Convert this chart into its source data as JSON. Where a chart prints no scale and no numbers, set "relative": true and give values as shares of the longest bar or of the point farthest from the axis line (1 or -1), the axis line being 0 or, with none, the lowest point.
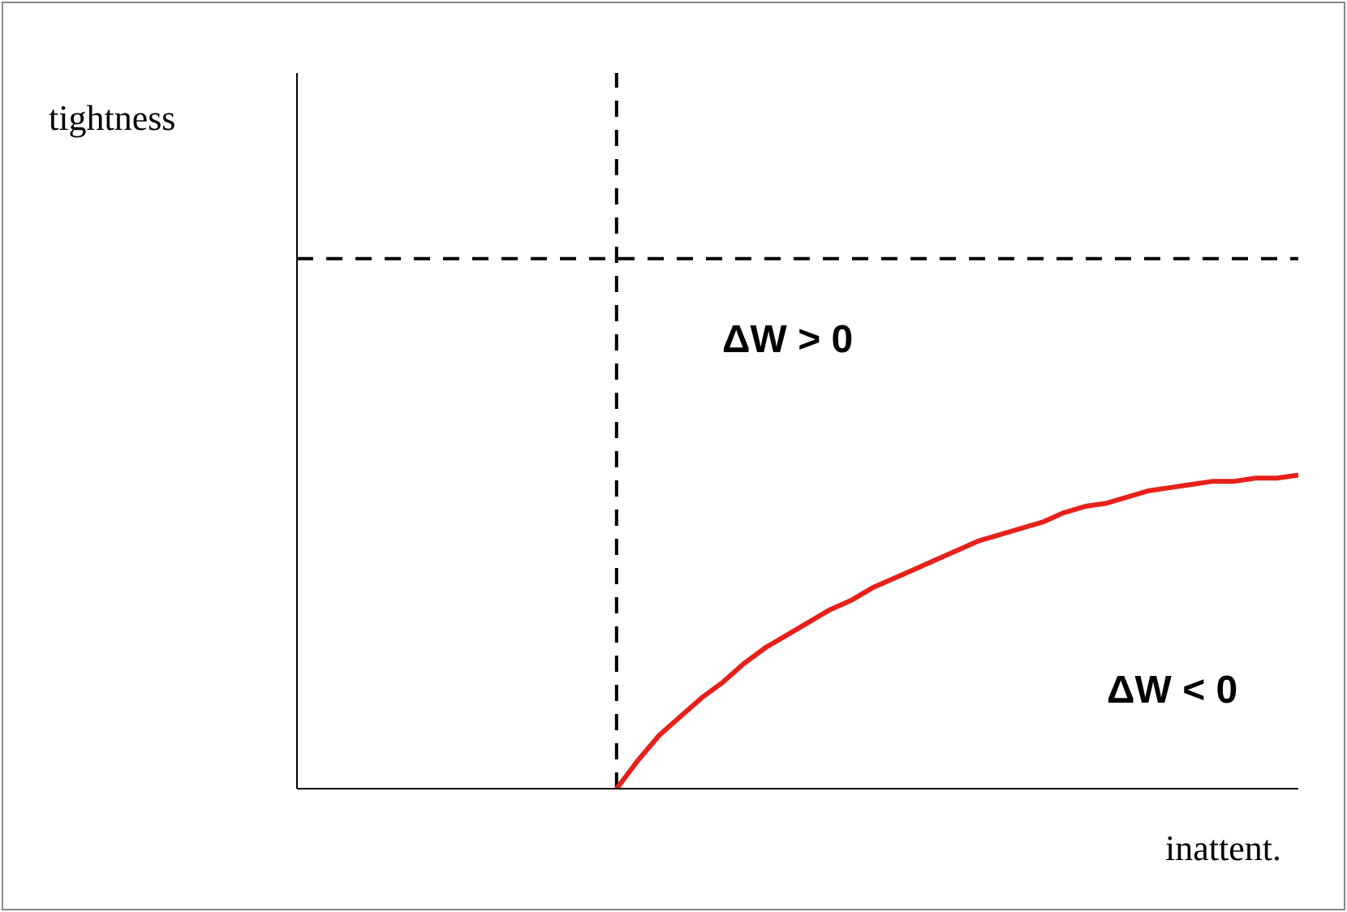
{
  "chart_data": {
    "type": "line",
    "relative": true,
    "xlabel": "inattent.",
    "categories": [
      null,
      null,
      null,
      null,
      null,
      null,
      null,
      null,
      null,
      null,
      null,
      null,
      null,
      null,
      null,
      null,
      null,
      null,
      null,
      null,
      null,
      null,
      null,
      null,
      null,
      null,
      null,
      null,
      null,
      null,
      null,
      null,
      null,
      null,
      null,
      null,
      null,
      null,
      null,
      null,
      null,
      null,
      null,
      null,
      null,
      null,
      null,
      null
    ],
    "series": [
      {
        "color": "#e8201a",
        "values": [
          null,
          null,
          null,
          null,
          null,
          null,
          null,
          null,
          null,
          null,
          null,
          null,
          null,
          null,
          null,
          0,
          0.09,
          0.17,
          0.23,
          0.29,
          0.34,
          0.4,
          0.45,
          0.49,
          0.53,
          0.57,
          0.6,
          0.64,
          0.67,
          0.7,
          0.73,
          0.76,
          0.79,
          0.81,
          0.83,
          0.85,
          0.88,
          0.9,
          0.91,
          0.93,
          0.95,
          0.96,
          0.97,
          0.98,
          0.98,
          0.99,
          0.99,
          1
        ]
      }
    ],
    "ref_lines": [
      {
        "axis": "y",
        "value": 1.69,
        "color": "#000000",
        "line_style": "dashed"
      }
    ],
    "annotations": [
      "tightness",
      "ΔW > 0",
      "ΔW < 0"
    ],
    "grid": false,
    "legend": false,
    "marker": "none",
    "line_style": "solid"
  }
}
